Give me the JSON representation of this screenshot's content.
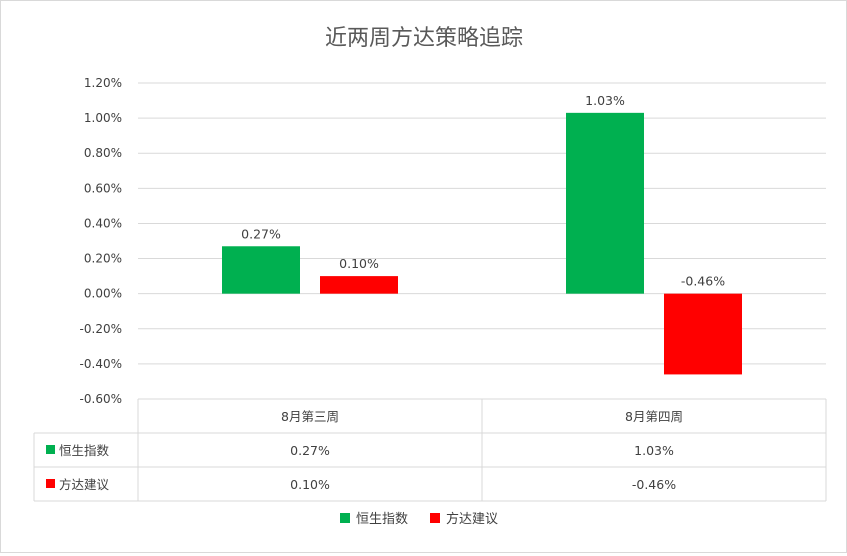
{
  "chart_data": {
    "type": "bar",
    "title": "近两周方达策略追踪",
    "categories": [
      "8月第三周",
      "8月第四周"
    ],
    "series": [
      {
        "name": "恒生指数",
        "color": "#00b050",
        "values": [
          0.27,
          1.03
        ],
        "labels": [
          "0.27%",
          "1.03%"
        ]
      },
      {
        "name": "方达建议",
        "color": "#ff0000",
        "values": [
          0.1,
          -0.46
        ],
        "labels": [
          "0.10%",
          "-0.46%"
        ]
      }
    ],
    "ylim": [
      -0.6,
      1.2
    ],
    "y_ticks": [
      1.2,
      1.0,
      0.8,
      0.6,
      0.4,
      0.2,
      0.0,
      -0.2,
      -0.4,
      -0.6
    ],
    "y_tick_labels": [
      "1.20%",
      "1.00%",
      "0.80%",
      "0.60%",
      "0.40%",
      "0.20%",
      "0.00%",
      "-0.20%",
      "-0.40%",
      "-0.60%"
    ],
    "grid": true,
    "data_table": true,
    "legend_position": "bottom"
  }
}
